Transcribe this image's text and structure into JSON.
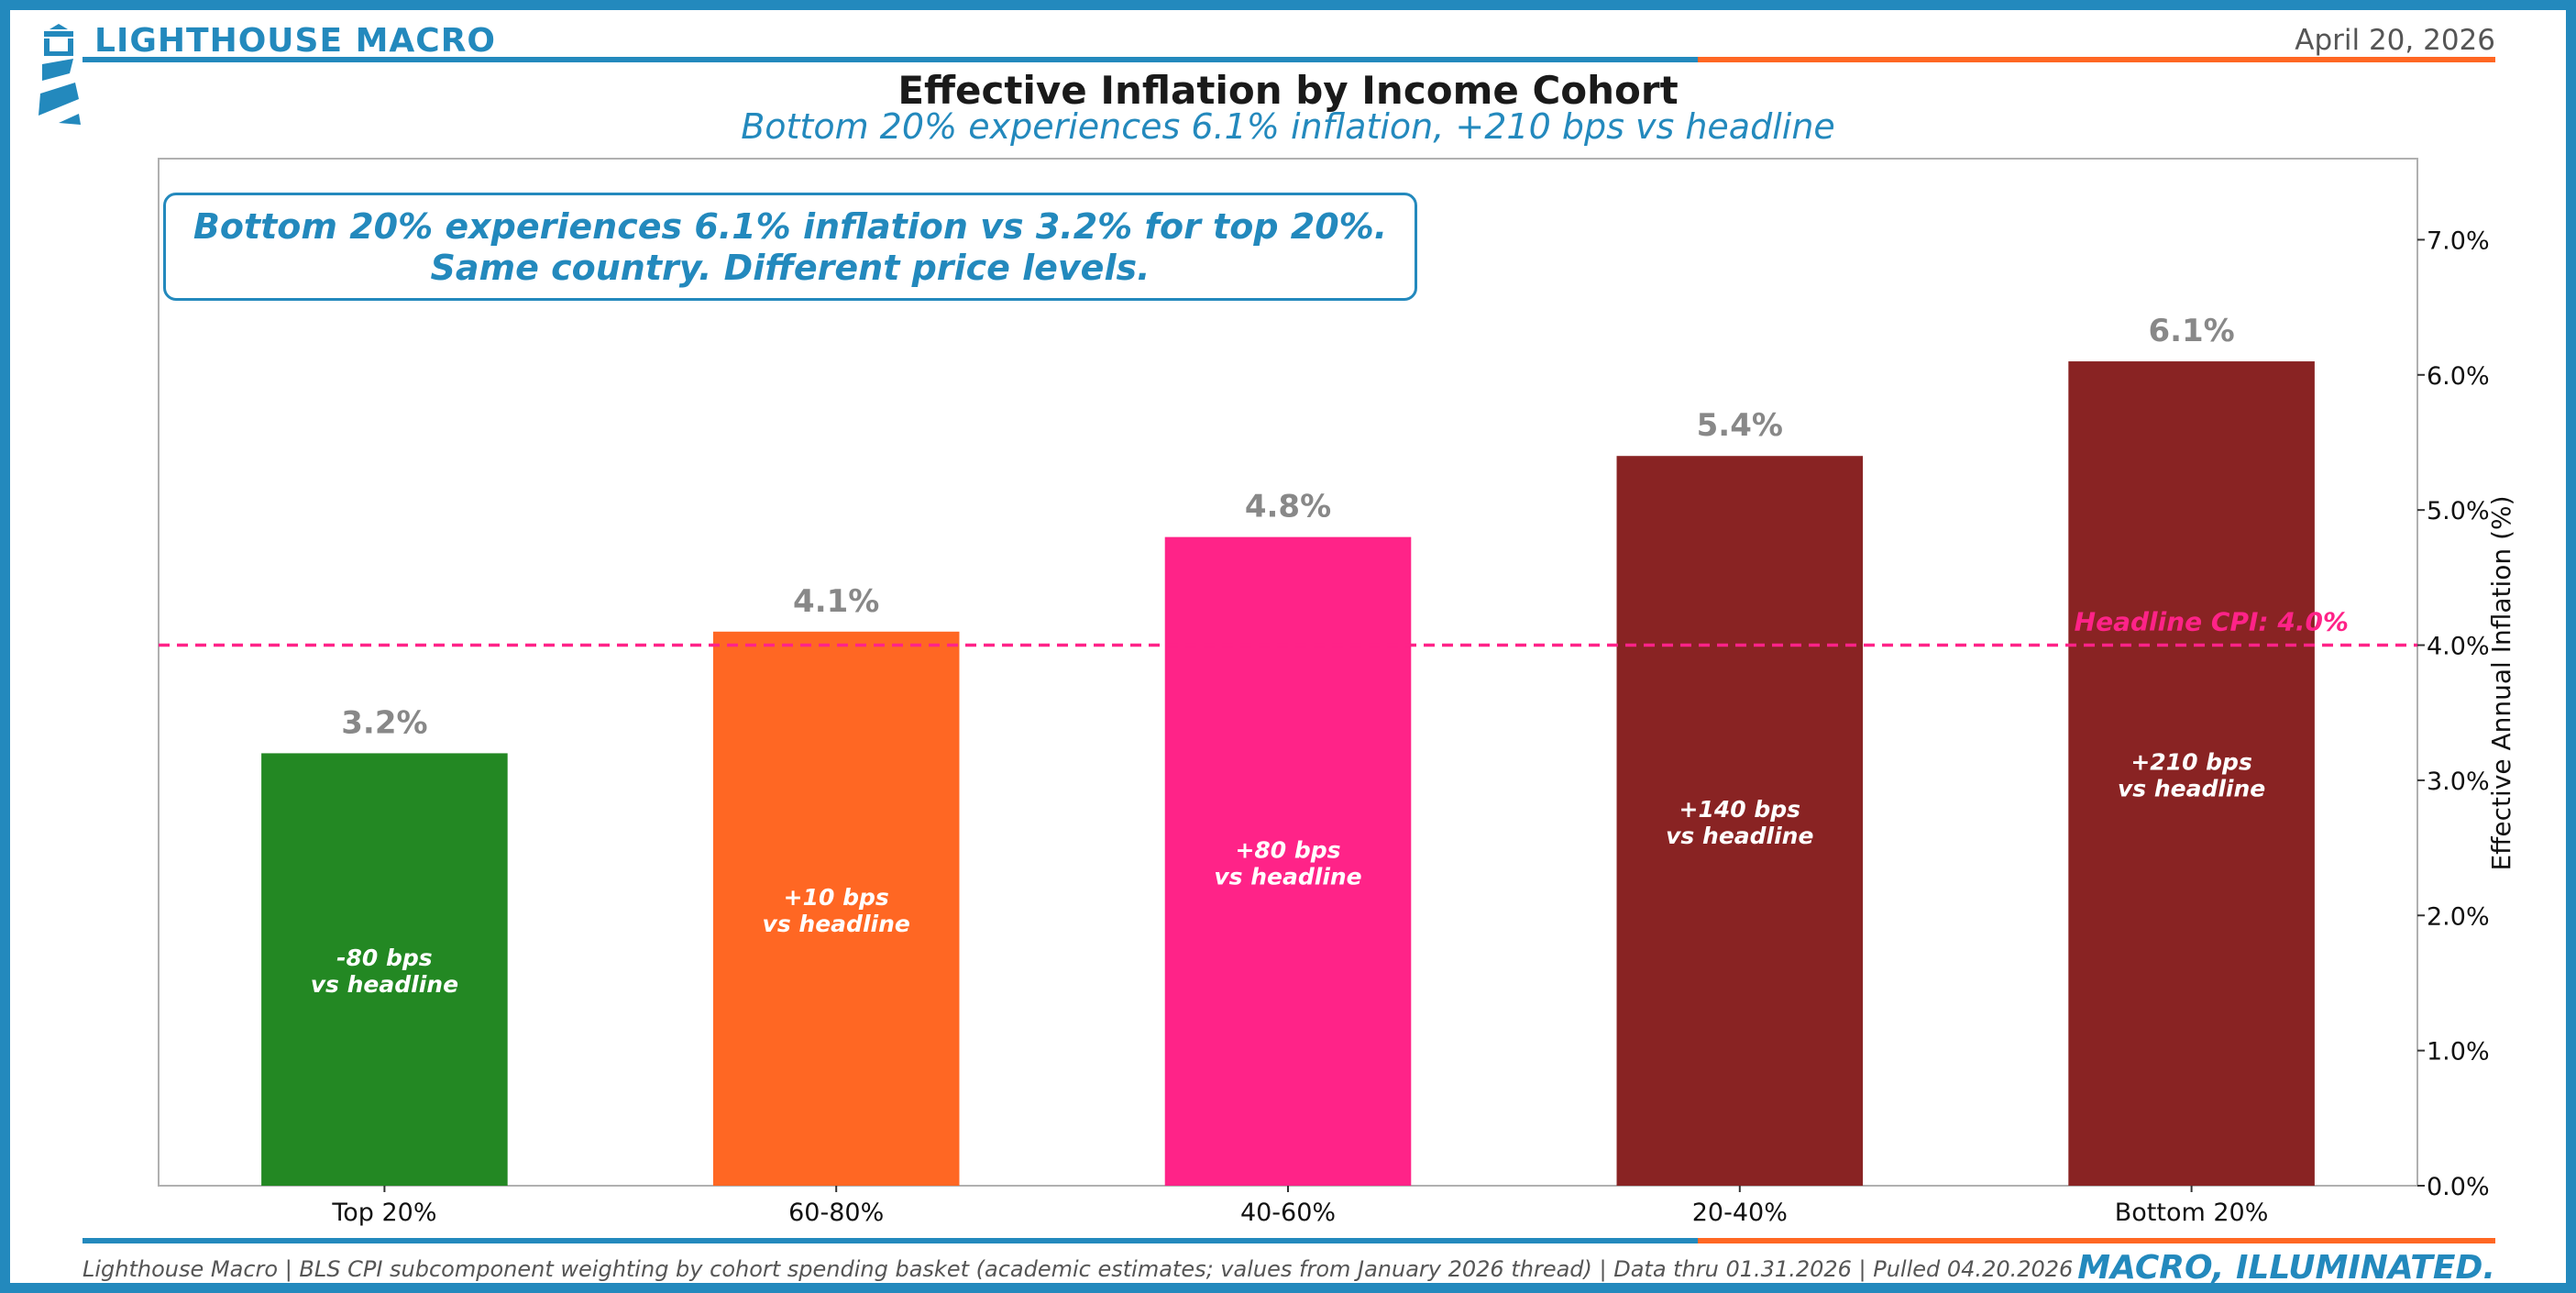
{
  "header": {
    "brand": "LIGHTHOUSE MACRO",
    "date": "April 20, 2026",
    "logo_icon": "lighthouse-icon"
  },
  "colors": {
    "brand_blue": "#2389bd",
    "accent_orange": "#ff6723",
    "headline_pink": "#ff2388"
  },
  "footer": {
    "source": "Lighthouse Macro | BLS CPI subcomponent weighting by cohort spending basket (academic estimates; values from January 2026 thread) | Data thru 01.31.2026 | Pulled 04.20.2026",
    "tagline": "MACRO, ILLUMINATED."
  },
  "chart_data": {
    "type": "bar",
    "title": "Effective Inflation by Income Cohort",
    "subtitle": "Bottom 20% experiences 6.1% inflation, +210 bps vs headline",
    "ylabel": "Effective Annual Inflation (%)",
    "xlabel": "",
    "ylim": [
      0,
      7.6
    ],
    "yticks": [
      0,
      1,
      2,
      3,
      4,
      5,
      6,
      7
    ],
    "ytick_labels": [
      "0.0%",
      "1.0%",
      "2.0%",
      "3.0%",
      "4.0%",
      "5.0%",
      "6.0%",
      "7.0%"
    ],
    "y_axis_side": "right",
    "grid": false,
    "categories": [
      "Top 20%",
      "60-80%",
      "40-60%",
      "20-40%",
      "Bottom 20%"
    ],
    "values": [
      3.2,
      4.1,
      4.8,
      5.4,
      6.1
    ],
    "value_labels": [
      "3.2%",
      "4.1%",
      "4.8%",
      "5.4%",
      "6.1%"
    ],
    "bar_colors": [
      "#238823",
      "#ff6723",
      "#ff2388",
      "#892323",
      "#892323"
    ],
    "bar_annotations": [
      [
        "-80 bps",
        "vs headline"
      ],
      [
        "+10 bps",
        "vs headline"
      ],
      [
        "+80 bps",
        "vs headline"
      ],
      [
        "+140 bps",
        "vs headline"
      ],
      [
        "+210 bps",
        "vs headline"
      ]
    ],
    "reference_line": {
      "value": 4.0,
      "label": "Headline CPI: 4.0%",
      "color": "#ff2388",
      "style": "dashed"
    },
    "callout": [
      "Bottom 20% experiences 6.1% inflation vs 3.2% for top 20%.",
      "Same country. Different price levels."
    ]
  }
}
